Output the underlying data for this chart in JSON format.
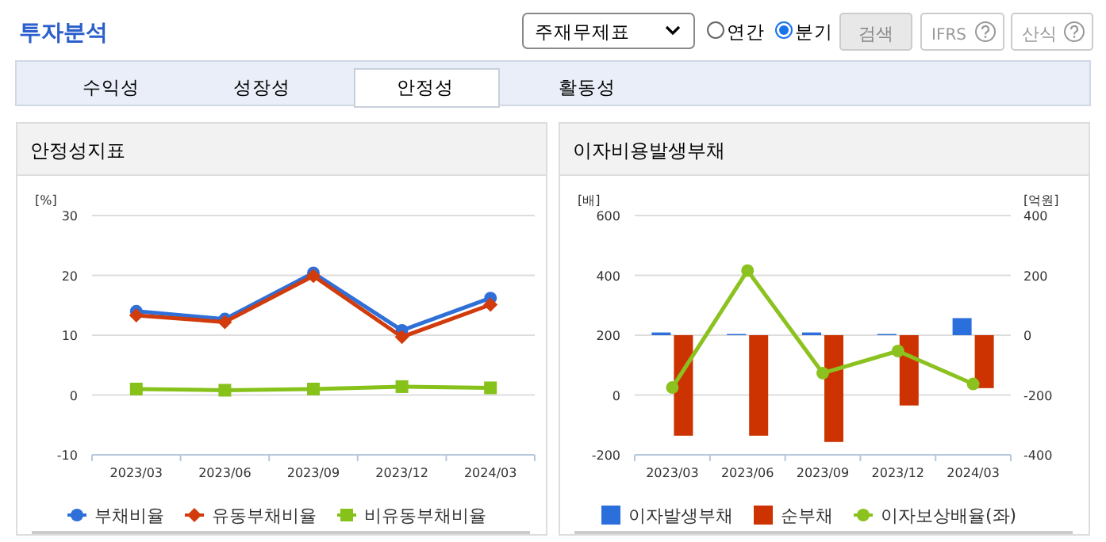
{
  "chart_data": [
    {
      "type": "other",
      "title": "투자분석",
      "annotations": [
        "주재무제표",
        "연간",
        "분기",
        "검색",
        "IFRS",
        "산식",
        "수익성",
        "성장성",
        "안정성",
        "활동성"
      ]
    },
    {
      "type": "line",
      "title": "안정성지표",
      "ylabel": "[%]",
      "categories": [
        "2023/03",
        "2023/06",
        "2023/09",
        "2023/12",
        "2024/03"
      ],
      "ylim": [
        -10,
        30
      ],
      "yticks": [
        -10,
        0,
        10,
        20,
        30
      ],
      "grid": "y",
      "legend": "bottom",
      "series": [
        {
          "name": "부채비율",
          "color": "#2f6fd8",
          "marker": "circle",
          "values": [
            14.0,
            12.7,
            20.4,
            10.8,
            16.2
          ]
        },
        {
          "name": "유동부채비율",
          "color": "#d23c0c",
          "marker": "diamond",
          "values": [
            13.3,
            12.2,
            19.9,
            9.7,
            15.1
          ]
        },
        {
          "name": "비유동부채비율",
          "color": "#86c21a",
          "marker": "square",
          "values": [
            1.0,
            0.8,
            1.0,
            1.4,
            1.2
          ]
        }
      ]
    },
    {
      "type": "bar",
      "title": "이자비용발생부채",
      "ylabel": "[배]",
      "y2label": "[억원]",
      "categories": [
        "2023/03",
        "2023/06",
        "2023/09",
        "2023/12",
        "2024/03"
      ],
      "ylim": [
        -200,
        600
      ],
      "yticks": [
        -200,
        0,
        200,
        400,
        600
      ],
      "y2lim": [
        -400,
        400
      ],
      "y2ticks": [
        -400,
        -200,
        0,
        200,
        400
      ],
      "grid": "y",
      "legend": "bottom",
      "series": [
        {
          "name": "이자발생부채",
          "type": "bar",
          "axis": "y2",
          "color": "#2a6fdb",
          "values": [
            9,
            4,
            9,
            4,
            57
          ]
        },
        {
          "name": "순부채",
          "type": "bar",
          "axis": "y2",
          "color": "#cc3300",
          "values": [
            -336,
            -336,
            -357,
            -235,
            -177
          ]
        },
        {
          "name": "이자보상배율(좌)",
          "type": "line",
          "axis": "y",
          "color": "#8cc21f",
          "marker": "circle",
          "values": [
            25,
            416,
            73,
            147,
            37
          ]
        }
      ]
    }
  ]
}
